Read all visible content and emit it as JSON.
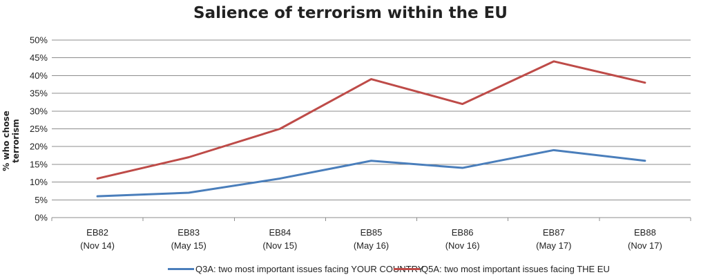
{
  "chart_data": {
    "type": "line",
    "title": "Salience of terrorism within the EU",
    "xlabel": "",
    "ylabel": "% who chose terrorism",
    "ylim": [
      0,
      50
    ],
    "y_ticks": [
      "0%",
      "5%",
      "10%",
      "15%",
      "20%",
      "25%",
      "30%",
      "35%",
      "40%",
      "45%",
      "50%"
    ],
    "categories": [
      [
        "EB82",
        "(Nov 14)"
      ],
      [
        "EB83",
        "(May 15)"
      ],
      [
        "EB84",
        "(Nov 15)"
      ],
      [
        "EB85",
        "(May 16)"
      ],
      [
        "EB86",
        "(Nov 16)"
      ],
      [
        "EB87",
        "(May 17)"
      ],
      [
        "EB88",
        "(Nov 17)"
      ]
    ],
    "grid": true,
    "legend_position": "bottom",
    "series": [
      {
        "name": "Q3A: two most important issues facing YOUR COUNTRY",
        "color": "#4a7ebb",
        "values": [
          6,
          7,
          11,
          16,
          14,
          19,
          16
        ]
      },
      {
        "name": "Q5A: two most important issues facing THE EU",
        "color": "#be4b48",
        "values": [
          11,
          17,
          25,
          39,
          32,
          44,
          38
        ]
      }
    ]
  }
}
